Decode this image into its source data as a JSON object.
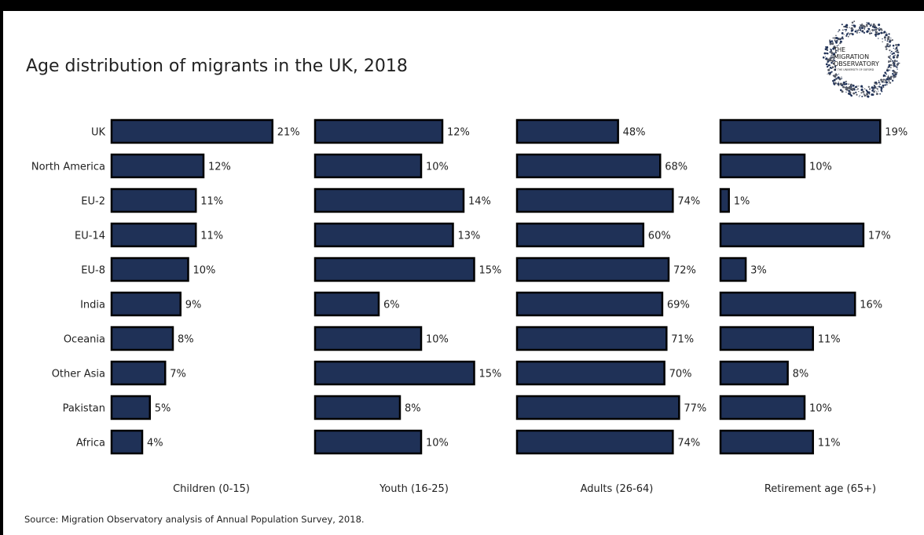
{
  "title": "Age distribution of migrants in the UK, 2018",
  "source": "Source: Migration Observatory analysis of Annual Population Survey, 2018.",
  "logo": {
    "line1": "THE",
    "line2": "MIGRATION",
    "line3": "OBSERVATORY",
    "line4": "AT THE UNIVERSITY OF OXFORD"
  },
  "colors": {
    "bar": "#1f3157",
    "bar_outline": "#000000"
  },
  "chart_data": {
    "type": "bar",
    "orientation": "horizontal",
    "layout": "small-multiples",
    "categories": [
      "UK",
      "North America",
      "EU-2",
      "EU-14",
      "EU-8",
      "India",
      "Oceania",
      "Other Asia",
      "Pakistan",
      "Africa"
    ],
    "series": [
      {
        "name": "Children (0-15)",
        "values": [
          21,
          12,
          11,
          11,
          10,
          9,
          8,
          7,
          5,
          4
        ],
        "labels": [
          "21%",
          "12%",
          "11%",
          "11%",
          "10%",
          "9%",
          "8%",
          "7%",
          "5%",
          "4%"
        ]
      },
      {
        "name": "Youth (16-25)",
        "values": [
          12,
          10,
          14,
          13,
          15,
          6,
          10,
          15,
          8,
          10
        ],
        "labels": [
          "12%",
          "10%",
          "14%",
          "13%",
          "15%",
          "6%",
          "10%",
          "15%",
          "8%",
          "10%"
        ]
      },
      {
        "name": "Adults (26-64)",
        "values": [
          48,
          68,
          74,
          60,
          72,
          69,
          71,
          70,
          77,
          74
        ],
        "labels": [
          "48%",
          "68%",
          "74%",
          "60%",
          "72%",
          "69%",
          "71%",
          "70%",
          "77%",
          "74%"
        ]
      },
      {
        "name": "Retirement age (65+)",
        "values": [
          19,
          10,
          1,
          17,
          3,
          16,
          11,
          8,
          10,
          11
        ],
        "labels": [
          "19%",
          "10%",
          "1%",
          "17%",
          "3%",
          "16%",
          "11%",
          "8%",
          "10%",
          "11%"
        ]
      }
    ],
    "grid": false,
    "legend": "none"
  }
}
